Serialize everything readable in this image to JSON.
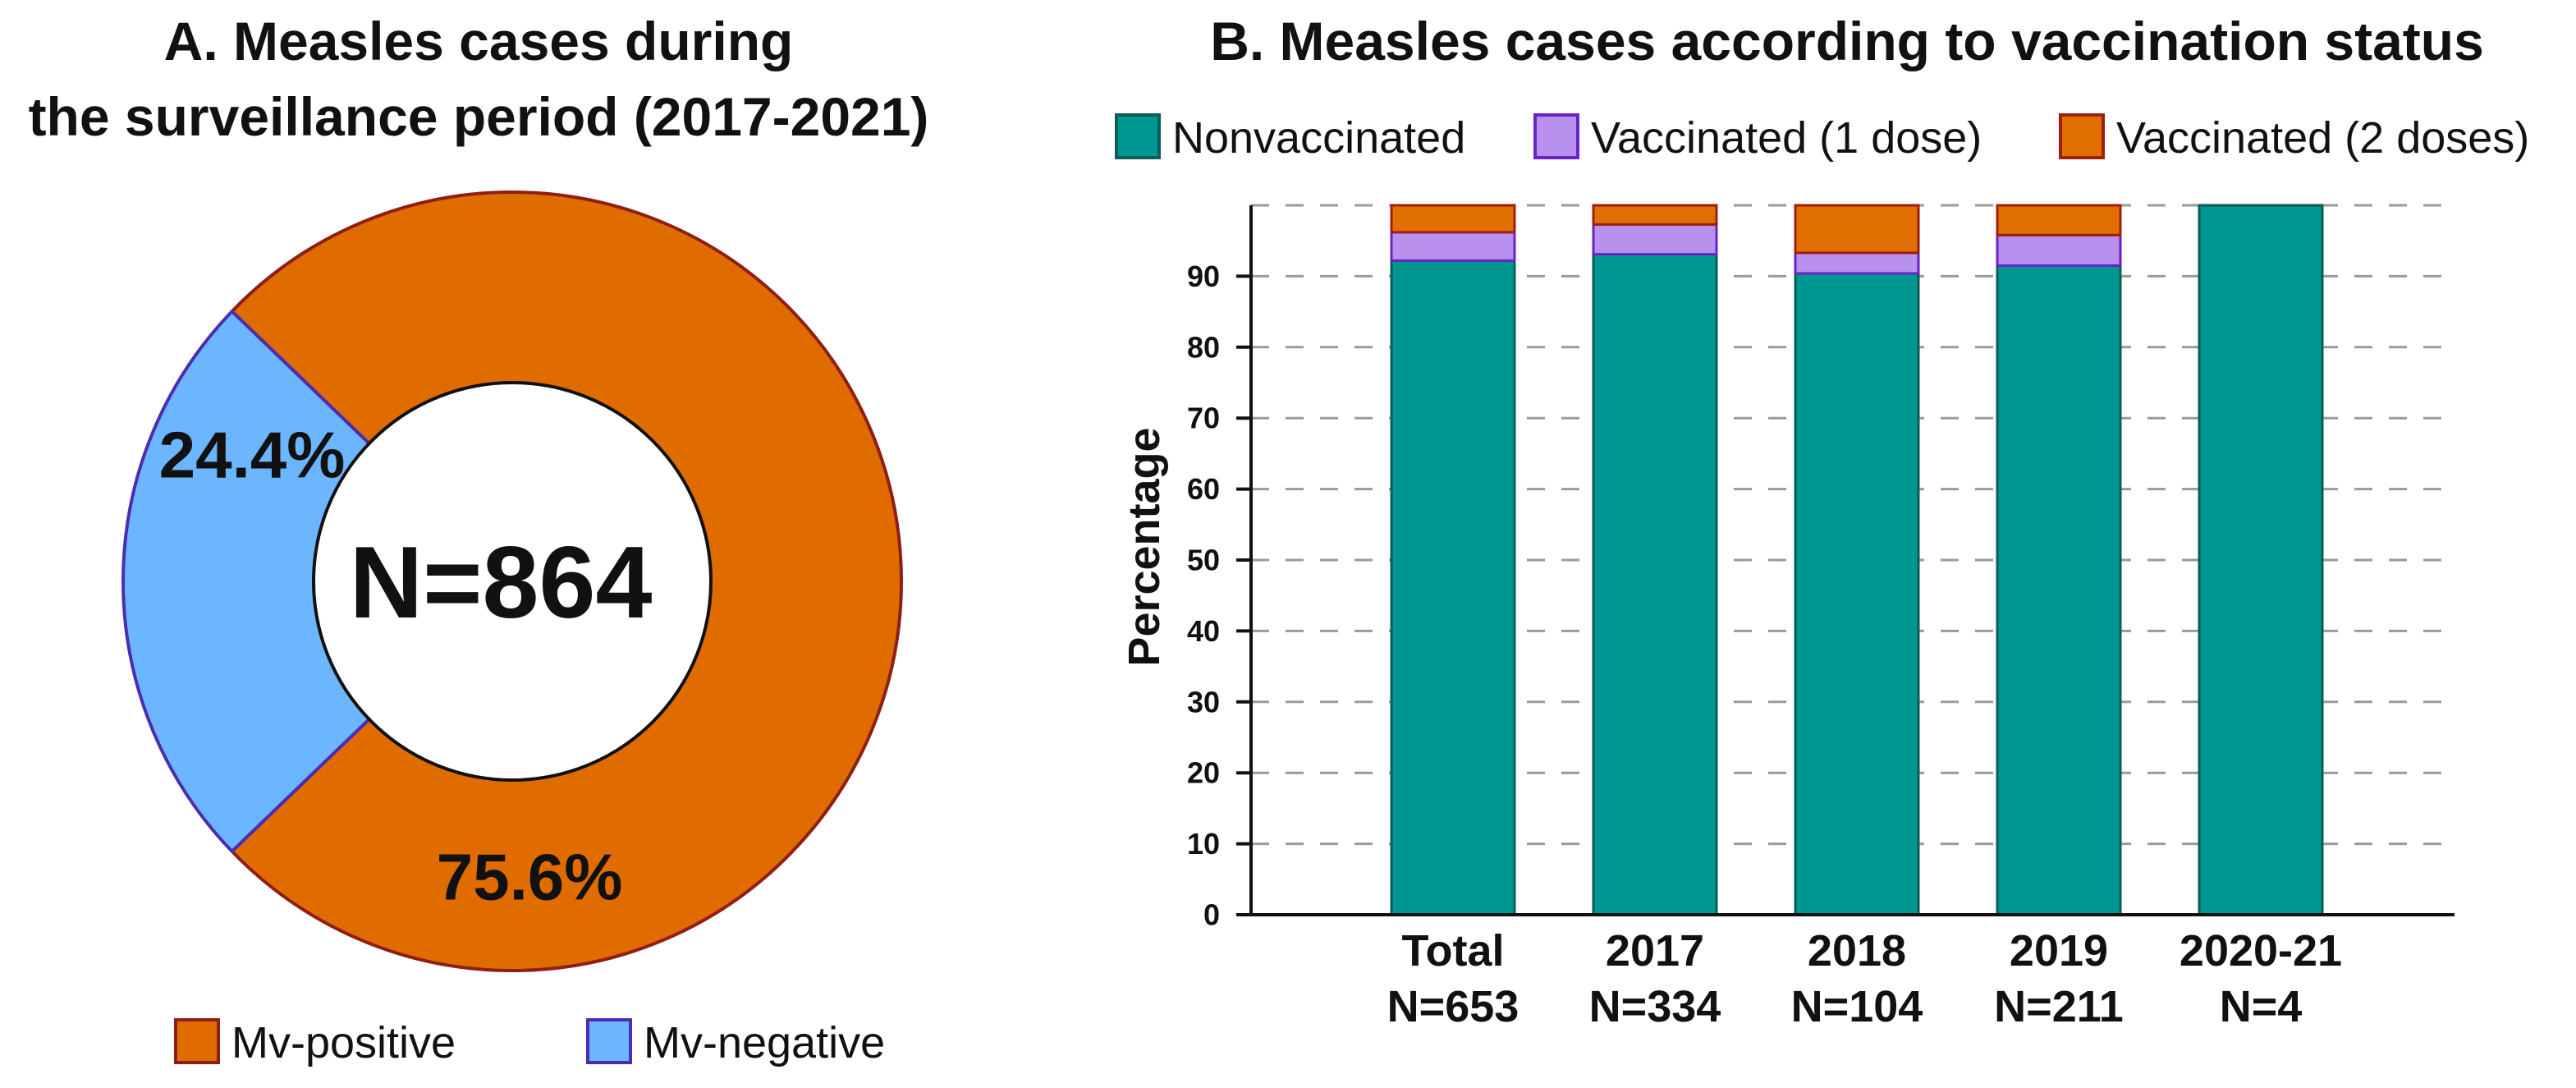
{
  "chart_data": [
    {
      "type": "pie",
      "title_lines": [
        "A. Measles cases during",
        "the surveillance period (2017-2021)"
      ],
      "center_label": "N=864",
      "slices": [
        {
          "label": "Mv-positive",
          "value": 75.6,
          "display": "75.6%",
          "color": "#E06C00",
          "edge_color": "#8F1E16"
        },
        {
          "label": "Mv-negative",
          "value": 24.4,
          "display": "24.4%",
          "color": "#6CB6FF",
          "edge_color": "#4B2DB2"
        }
      ]
    },
    {
      "type": "bar",
      "stacked": true,
      "title": "B. Measles cases according to vaccination status",
      "categories": [
        "Total",
        "2017",
        "2018",
        "2019",
        "2020-21"
      ],
      "category_sublabels": [
        "N=653",
        "N=334",
        "N=104",
        "N=211",
        "N=4"
      ],
      "series": [
        {
          "name": "Nonvaccinated",
          "values": [
            92.2,
            93.1,
            90.4,
            91.5,
            100
          ],
          "color": "#009790",
          "edge_color": "#0C5C57"
        },
        {
          "name": "Vaccinated (1 dose)",
          "values": [
            4.0,
            4.2,
            2.9,
            4.3,
            0
          ],
          "color": "#B891EE",
          "edge_color": "#6B22C6"
        },
        {
          "name": "Vaccinated (2 doses)",
          "values": [
            3.8,
            2.7,
            6.7,
            4.2,
            0
          ],
          "color": "#E06E00",
          "edge_color": "#9E1F10"
        }
      ],
      "ylabel": "Percentage",
      "ylim": [
        0,
        100
      ],
      "yticks": [
        0,
        10,
        20,
        30,
        40,
        50,
        60,
        70,
        80,
        90
      ],
      "grid": true
    }
  ]
}
